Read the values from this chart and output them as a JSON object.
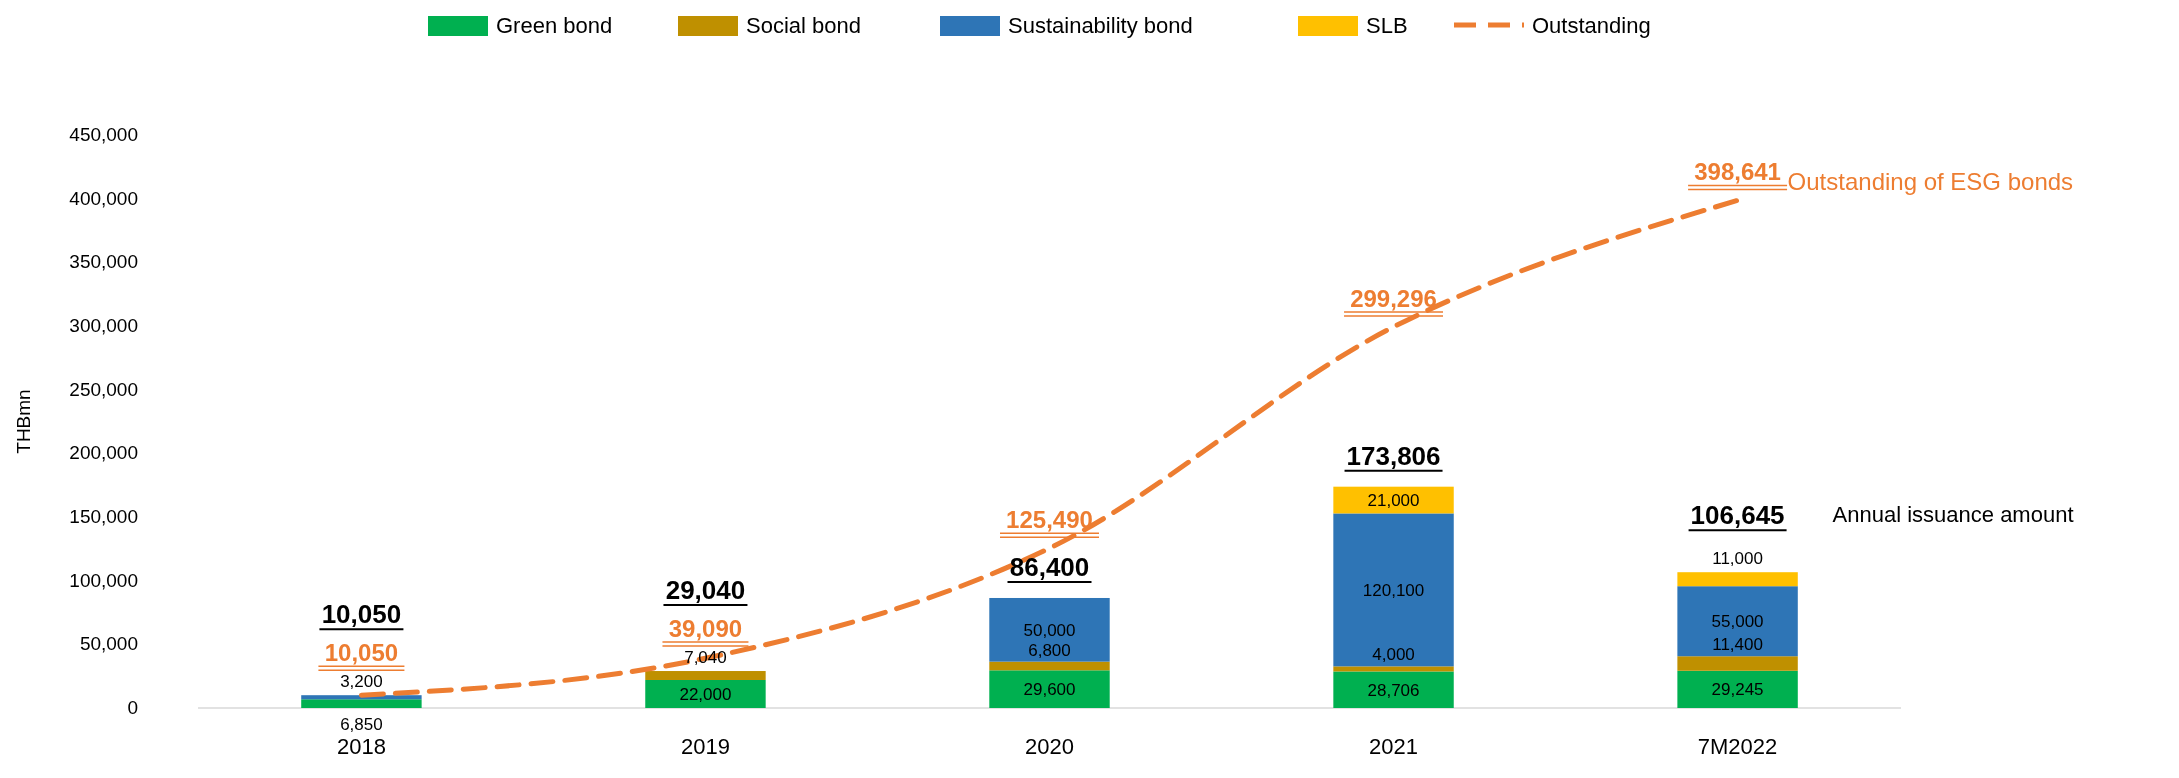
{
  "chart_data": {
    "type": "bar",
    "ylabel": "THBmn",
    "categories": [
      "2018",
      "2019",
      "2020",
      "2021",
      "7M2022"
    ],
    "stacked": true,
    "series": [
      {
        "name": "Green bond",
        "color": "#00b050",
        "values": [
          6850,
          22000,
          29600,
          28706,
          29245
        ],
        "value_labels": [
          "6,850",
          "22,000",
          "29,600",
          "28,706",
          "29,245"
        ]
      },
      {
        "name": "Social bond",
        "color": "#bf9000",
        "values": [
          null,
          7040,
          6800,
          4000,
          11400
        ],
        "value_labels": [
          null,
          "7,040",
          "6,800",
          "4,000",
          "11,400"
        ]
      },
      {
        "name": "Sustainability bond",
        "color": "#2e75b6",
        "values": [
          3200,
          null,
          50000,
          120100,
          55000
        ],
        "value_labels": [
          "3,200",
          null,
          "50,000",
          "120,100",
          "55,000"
        ]
      },
      {
        "name": "SLB",
        "color": "#ffc000",
        "values": [
          null,
          null,
          null,
          21000,
          11000
        ],
        "value_labels": [
          null,
          null,
          null,
          "21,000",
          "11,000"
        ]
      },
      {
        "name": "Outstanding",
        "type": "line",
        "color": "#ed7d31",
        "line_style": "dashed",
        "marker": "none",
        "values": [
          10050,
          39090,
          125490,
          299296,
          398641
        ],
        "value_labels": [
          "10,050",
          "39,090",
          "125,490",
          "299,296",
          "398,641"
        ]
      }
    ],
    "totals": [
      "10,050",
      "29,040",
      "86,400",
      "173,806",
      "106,645"
    ],
    "grid": false,
    "legend": "top",
    "ylim": [
      0,
      450000
    ],
    "yticks": [
      0,
      {
        "value": 50000,
        "label": "50,000"
      },
      {
        "value": 100000,
        "label": "100,000"
      },
      {
        "value": 150000,
        "label": "150,000"
      },
      {
        "value": 200000,
        "label": "200,000"
      },
      {
        "value": 250000,
        "label": "250,000"
      },
      {
        "value": 300000,
        "label": "300,000"
      },
      {
        "value": 350000,
        "label": "350,000"
      },
      {
        "value": 400000,
        "label": "400,000"
      },
      {
        "value": 450000,
        "label": "450,000"
      }
    ],
    "annotations": [
      "Outstanding of ESG bonds",
      "Annual issuance amount"
    ]
  }
}
